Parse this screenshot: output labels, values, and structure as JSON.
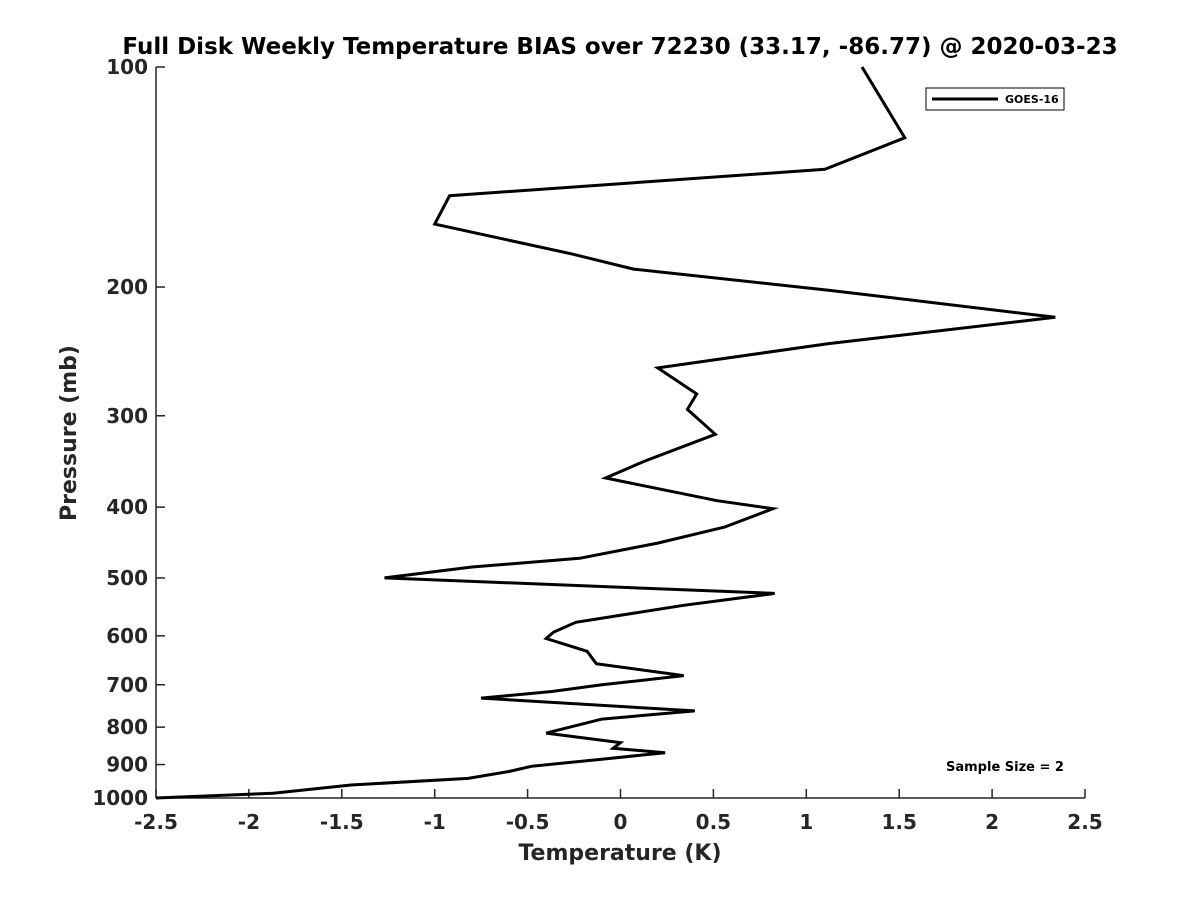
{
  "chart_data": {
    "type": "line",
    "title": "Full Disk Weekly Temperature BIAS over 72230 (33.17, -86.77) @ 2020-03-23",
    "xlabel": "Temperature (K)",
    "ylabel": "Pressure (mb)",
    "xlim": [
      -2.5,
      2.5
    ],
    "ylim": [
      100,
      1000
    ],
    "y_scale": "log",
    "y_reversed": true,
    "x_ticks": [
      -2.5,
      -2,
      -1.5,
      -1,
      -0.5,
      0,
      0.5,
      1,
      1.5,
      2,
      2.5
    ],
    "x_tick_labels": [
      "-2.5",
      "-2",
      "-1.5",
      "-1",
      "-0.5",
      "0",
      "0.5",
      "1",
      "1.5",
      "2",
      "2.5"
    ],
    "y_ticks": [
      100,
      200,
      300,
      400,
      500,
      600,
      700,
      800,
      900,
      1000
    ],
    "y_tick_labels": [
      "100",
      "200",
      "300",
      "400",
      "500",
      "600",
      "700",
      "800",
      "900",
      "1000"
    ],
    "grid": false,
    "legend_position": "top-right",
    "annotation": "Sample Size = 2",
    "series": [
      {
        "name": "GOES-16",
        "color": "#000000",
        "x": [
          1.3,
          1.53,
          1.1,
          -0.92,
          -1.0,
          -0.27,
          0.07,
          1.12,
          2.34,
          1.12,
          0.2,
          0.41,
          0.36,
          0.51,
          0.13,
          -0.08,
          0.52,
          0.82,
          0.56,
          0.2,
          -0.22,
          -0.8,
          -1.27,
          0.83,
          0.34,
          -0.24,
          -0.36,
          -0.4,
          -0.18,
          -0.13,
          0.34,
          -0.1,
          -0.37,
          -0.75,
          0.4,
          -0.1,
          -0.4,
          0.0,
          -0.04,
          0.24,
          -0.1,
          -0.48,
          -0.6,
          -0.82,
          -1.45,
          -1.87,
          -2.5
        ],
        "y": [
          100,
          125,
          138,
          150,
          164,
          180,
          189,
          202,
          220,
          239,
          258,
          280,
          294,
          318,
          346,
          365,
          392,
          402,
          426,
          448,
          470,
          483,
          500,
          525,
          545,
          575,
          593,
          605,
          630,
          655,
          680,
          700,
          715,
          730,
          760,
          780,
          815,
          840,
          855,
          867,
          885,
          905,
          920,
          940,
          960,
          985,
          1000
        ]
      }
    ]
  }
}
